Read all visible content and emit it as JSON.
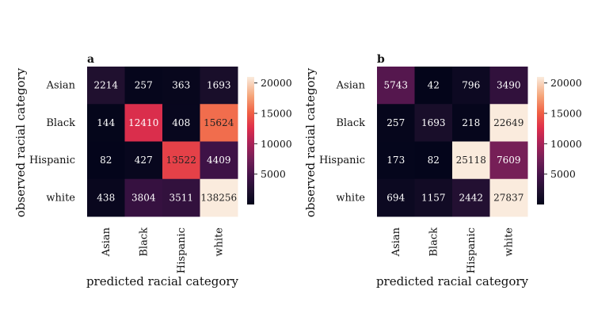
{
  "chart_data": [
    {
      "type": "heatmap",
      "panel": "a",
      "xlabel": "predicted racial category",
      "ylabel": "observed racial category",
      "x_categories": [
        "Asian",
        "Black",
        "Hispanic",
        "white"
      ],
      "y_categories": [
        "Asian",
        "Black",
        "Hispanic",
        "white"
      ],
      "values": [
        [
          2214,
          257,
          363,
          1693
        ],
        [
          144,
          12410,
          408,
          15624
        ],
        [
          82,
          427,
          13522,
          4409
        ],
        [
          438,
          3804,
          3511,
          138256
        ]
      ],
      "colorbar": {
        "vmin": 0,
        "vmax": 21000,
        "ticks": [
          5000,
          10000,
          15000,
          20000
        ]
      }
    },
    {
      "type": "heatmap",
      "panel": "b",
      "xlabel": "predicted racial category",
      "ylabel": "observed racial category",
      "x_categories": [
        "Asian",
        "Black",
        "Hispanic",
        "white"
      ],
      "y_categories": [
        "Asian",
        "Black",
        "Hispanic",
        "white"
      ],
      "values": [
        [
          5743,
          42,
          796,
          3490
        ],
        [
          257,
          1693,
          218,
          22649
        ],
        [
          173,
          82,
          25118,
          7609
        ],
        [
          694,
          1157,
          2442,
          27837
        ]
      ],
      "colorbar": {
        "vmin": 0,
        "vmax": 21000,
        "ticks": [
          5000,
          10000,
          15000,
          20000
        ]
      }
    }
  ]
}
